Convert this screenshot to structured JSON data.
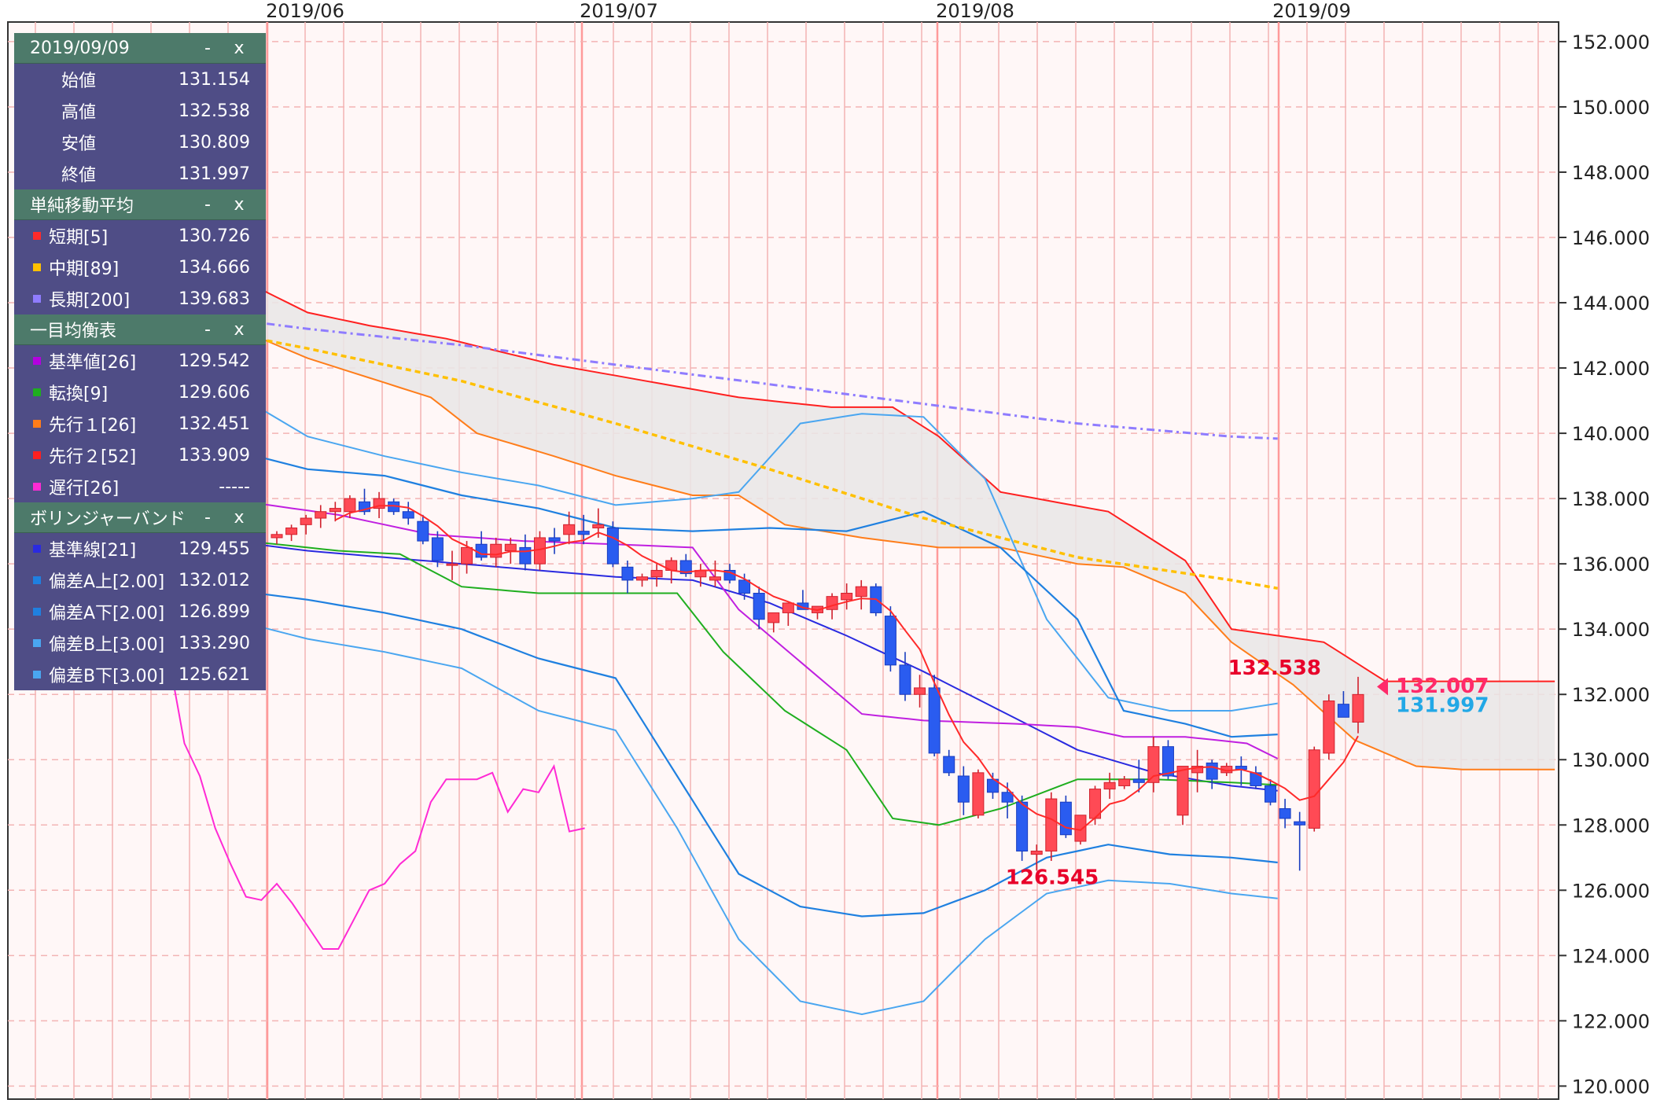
{
  "header": {
    "date": "2019/09/09",
    "minimize": "-",
    "close": "x"
  },
  "ohlc": [
    {
      "label": "始値",
      "value": "131.154"
    },
    {
      "label": "高値",
      "value": "132.538"
    },
    {
      "label": "安値",
      "value": "130.809"
    },
    {
      "label": "終値",
      "value": "131.997"
    }
  ],
  "sections": [
    {
      "title": "単純移動平均",
      "rows": [
        {
          "label": "短期[5]",
          "value": "130.726",
          "color": "#ff2a2a"
        },
        {
          "label": "中期[89]",
          "value": "134.666",
          "color": "#ffc000"
        },
        {
          "label": "長期[200]",
          "value": "139.683",
          "color": "#8f7cff"
        }
      ]
    },
    {
      "title": "一目均衡表",
      "rows": [
        {
          "label": "基準値[26]",
          "value": "129.542",
          "color": "#b400e0"
        },
        {
          "label": "転換[9]",
          "value": "129.606",
          "color": "#1fae1f"
        },
        {
          "label": "先行１[26]",
          "value": "132.451",
          "color": "#ff7d1a"
        },
        {
          "label": "先行２[52]",
          "value": "133.909",
          "color": "#ff2020"
        },
        {
          "label": "遅行[26]",
          "value": "-----",
          "color": "#ff2ad4"
        }
      ]
    },
    {
      "title": "ボリンジャーバンド",
      "rows": [
        {
          "label": "基準線[21]",
          "value": "129.455",
          "color": "#2a2ae0"
        },
        {
          "label": "偏差A上[2.00]",
          "value": "132.012",
          "color": "#1f80e0"
        },
        {
          "label": "偏差A下[2.00]",
          "value": "126.899",
          "color": "#1f80e0"
        },
        {
          "label": "偏差B上[3.00]",
          "value": "133.290",
          "color": "#4aa6f0"
        },
        {
          "label": "偏差B下[3.00]",
          "value": "125.621",
          "color": "#4aa6f0"
        }
      ]
    }
  ],
  "chart_data": {
    "type": "candlestick",
    "x_labels": [
      "2019/06",
      "2019/07",
      "2019/08",
      "2019/09"
    ],
    "y_ticks": [
      "152.000",
      "150.000",
      "148.000",
      "146.000",
      "144.000",
      "142.000",
      "140.000",
      "138.000",
      "136.000",
      "134.000",
      "132.000",
      "130.000",
      "128.000",
      "126.000",
      "124.000",
      "122.000",
      "120.000"
    ],
    "ylim": [
      119.6,
      152.6
    ],
    "annotations": [
      {
        "text": "132.538",
        "value": 132.538,
        "color": "#e8002a"
      },
      {
        "text": "126.545",
        "value": 126.545,
        "color": "#e8002a"
      }
    ],
    "price_markers": [
      {
        "text": "132.007",
        "value": 132.007,
        "color": "#ff2a6a"
      },
      {
        "text": "131.997",
        "value": 131.997,
        "color": "#22a8e6"
      }
    ],
    "colors": {
      "up": "#ff4a55",
      "down": "#2a5cf0",
      "bg": "#fff7f7",
      "grid": "#f3b4b4"
    }
  }
}
